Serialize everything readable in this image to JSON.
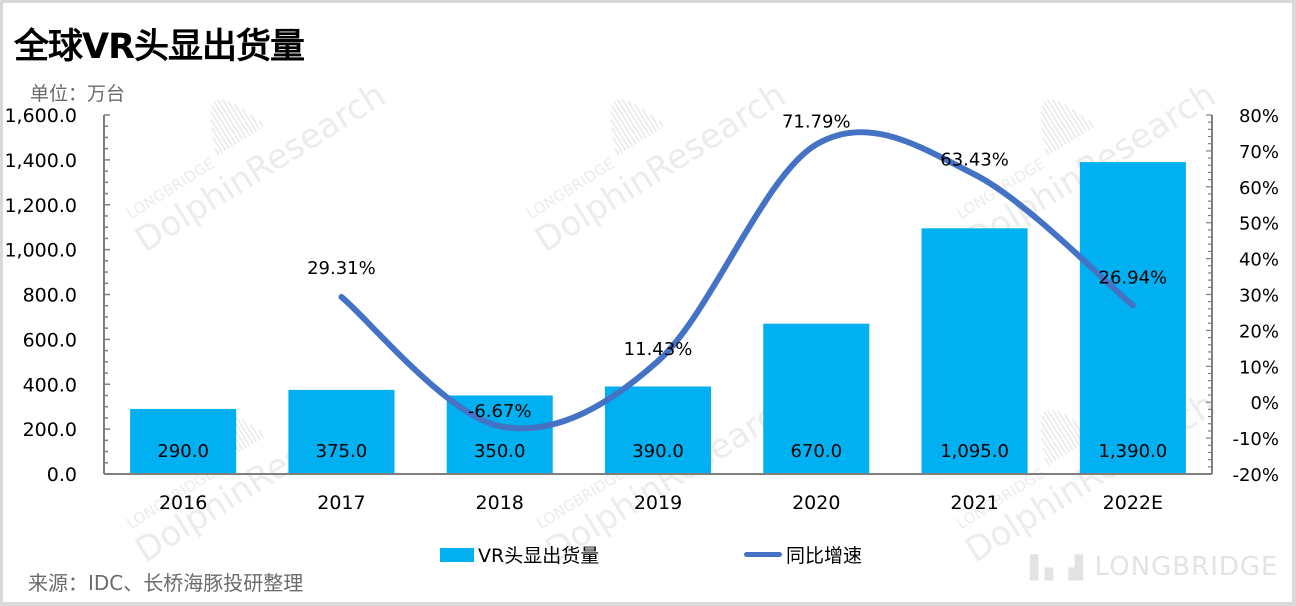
{
  "title": "全球VR头显出货量",
  "unit_label": "单位：万台",
  "source": "来源：IDC、长桥海豚投研整理",
  "watermark": {
    "brand": "LONGBRIDGE",
    "text": "DolphinResearch"
  },
  "colors": {
    "bar": "#00b0f0",
    "line": "#4472c4",
    "axis": "#7f7f7f"
  },
  "chart_data": {
    "type": "bar",
    "title": "全球VR头显出货量",
    "xlabel": "",
    "ylabel": "单位：万台",
    "categories": [
      "2016",
      "2017",
      "2018",
      "2019",
      "2020",
      "2021",
      "2022E"
    ],
    "series": [
      {
        "name": "VR头显出货量",
        "type": "bar",
        "axis": "left",
        "values": [
          290.0,
          375.0,
          350.0,
          390.0,
          670.0,
          1095.0,
          1390.0
        ],
        "labels": [
          "290.0",
          "375.0",
          "350.0",
          "390.0",
          "670.0",
          "1,095.0",
          "1,390.0"
        ]
      },
      {
        "name": "同比增速",
        "type": "line",
        "smooth": true,
        "axis": "right",
        "values": [
          null,
          29.31,
          -6.67,
          11.43,
          71.79,
          63.43,
          26.94
        ],
        "labels": [
          "",
          "29.31%",
          "-6.67%",
          "11.43%",
          "71.79%",
          "63.43%",
          "26.94%"
        ]
      }
    ],
    "ylim": [
      0,
      1600
    ],
    "y_ticks": [
      "0.0",
      "200.0",
      "400.0",
      "600.0",
      "800.0",
      "1,000.0",
      "1,200.0",
      "1,400.0",
      "1,600.0"
    ],
    "y2lim": [
      -20,
      80
    ],
    "y2_ticks": [
      "-20%",
      "-10%",
      "0%",
      "10%",
      "20%",
      "30%",
      "40%",
      "50%",
      "60%",
      "70%",
      "80%"
    ],
    "grid": false,
    "legend": "bottom-center"
  }
}
